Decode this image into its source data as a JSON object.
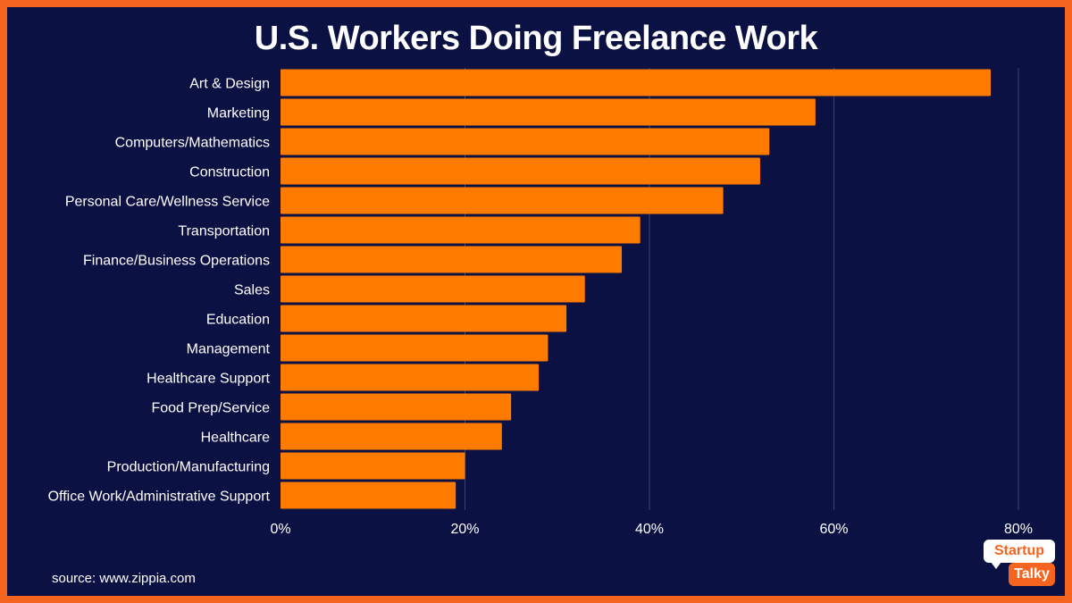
{
  "chart_data": {
    "type": "bar",
    "orientation": "horizontal",
    "title": "U.S. Workers Doing Freelance Work",
    "categories": [
      "Art & Design",
      "Marketing",
      "Computers/Mathematics",
      "Construction",
      "Personal Care/Wellness Service",
      "Transportation",
      "Finance/Business Operations",
      "Sales",
      "Education",
      "Management",
      "Healthcare Support",
      "Food Prep/Service",
      "Healthcare",
      "Production/Manufacturing",
      "Office Work/Administrative Support"
    ],
    "values": [
      77,
      58,
      53,
      52,
      48,
      39,
      37,
      33,
      31,
      29,
      28,
      25,
      24,
      20,
      19
    ],
    "xlim": [
      0,
      80
    ],
    "x_ticks": [
      0,
      20,
      40,
      60,
      80
    ],
    "x_tick_labels": [
      "0%",
      "20%",
      "40%",
      "60%",
      "80%"
    ],
    "xlabel": "",
    "ylabel": "",
    "grid": "vertical",
    "legend": "none",
    "bar_color": "#ff7b00",
    "grid_color": "#3a4270",
    "background_color": "#0b1142",
    "border_color": "#f5651f"
  },
  "source_text": "source: www.zippia.com",
  "logo": {
    "line1": "Startup",
    "line2": "Talky"
  }
}
